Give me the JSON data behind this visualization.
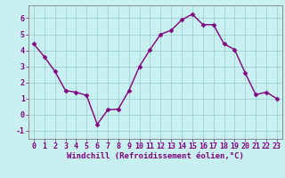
{
  "x": [
    0,
    1,
    2,
    3,
    4,
    5,
    6,
    7,
    8,
    9,
    10,
    11,
    12,
    13,
    14,
    15,
    16,
    17,
    18,
    19,
    20,
    21,
    22,
    23
  ],
  "y": [
    4.4,
    3.6,
    2.7,
    1.5,
    1.4,
    1.2,
    -0.6,
    0.3,
    0.35,
    1.5,
    3.0,
    4.05,
    5.0,
    5.25,
    5.9,
    6.25,
    5.6,
    5.6,
    4.4,
    4.05,
    2.6,
    1.25,
    1.4,
    1.0
  ],
  "line_color": "#800080",
  "marker_color": "#800080",
  "bg_color": "#c8f0f0",
  "grid_color": "#a0d0d0",
  "xlabel": "Windchill (Refroidissement éolien,°C)",
  "ylim": [
    -1.5,
    6.8
  ],
  "xlim": [
    -0.5,
    23.5
  ],
  "yticks": [
    -1,
    0,
    1,
    2,
    3,
    4,
    5,
    6
  ],
  "xticks": [
    0,
    1,
    2,
    3,
    4,
    5,
    6,
    7,
    8,
    9,
    10,
    11,
    12,
    13,
    14,
    15,
    16,
    17,
    18,
    19,
    20,
    21,
    22,
    23
  ],
  "xlabel_fontsize": 6.5,
  "tick_fontsize": 6.0,
  "line_width": 1.0,
  "marker_size": 2.5
}
